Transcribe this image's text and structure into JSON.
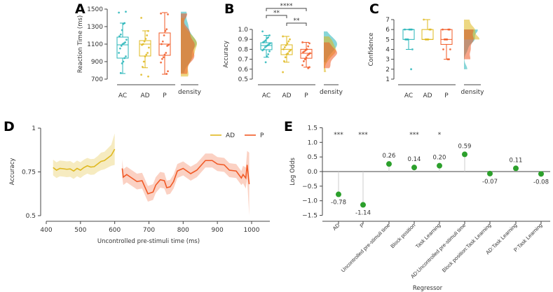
{
  "colors": {
    "AC": "#27b5b8",
    "AD": "#dfb81e",
    "P": "#f15a26",
    "coef": "#2ca02c",
    "stem": "#cccccc",
    "axis": "#444444"
  },
  "chart_data": [
    {
      "panel": "A",
      "type": "box",
      "ylabel": "Reaction Time (ms)",
      "ylim": [
        700,
        1500
      ],
      "yticks": [
        "700",
        "900",
        "1100",
        "1300",
        "1500"
      ],
      "categories": [
        "AC",
        "AD",
        "P"
      ],
      "density_label": "density",
      "series": [
        {
          "name": "AC",
          "q1": 940,
          "median": 1092,
          "q3": 1180,
          "whisker_low": 764,
          "whisker_high": 1340,
          "points": [
            1460,
            1470,
            1340,
            1330,
            1260,
            1210,
            1190,
            1150,
            1120,
            1110,
            1100,
            1080,
            1050,
            1000,
            960,
            940,
            900,
            880,
            770
          ]
        },
        {
          "name": "AD",
          "q1": 964,
          "median": 1100,
          "q3": 1140,
          "whisker_low": 830,
          "whisker_high": 1252,
          "points": [
            1400,
            1250,
            1200,
            1160,
            1130,
            1100,
            1090,
            1060,
            1000,
            980,
            960,
            900,
            840,
            750,
            730
          ]
        },
        {
          "name": "P",
          "q1": 972,
          "median": 1100,
          "q3": 1228,
          "whisker_low": 756,
          "whisker_high": 1460,
          "points": [
            1450,
            1440,
            1270,
            1250,
            1200,
            1130,
            1100,
            1090,
            1080,
            1000,
            980,
            950,
            930,
            890,
            790,
            760
          ]
        }
      ]
    },
    {
      "panel": "B",
      "type": "box",
      "ylabel": "Accuracy",
      "ylim": [
        0.5,
        1.0
      ],
      "yticks": [
        "0.5",
        "0.6",
        "0.7",
        "0.8",
        "0.9",
        "1.0"
      ],
      "categories": [
        "AC",
        "AD",
        "P"
      ],
      "density_label": "density",
      "significance": [
        {
          "from": "AC",
          "to": "P",
          "label": "****"
        },
        {
          "from": "AC",
          "to": "AD",
          "label": "**"
        },
        {
          "from": "AD",
          "to": "P",
          "label": "**"
        }
      ],
      "series": [
        {
          "name": "AC",
          "q1": 0.796,
          "median": 0.838,
          "q3": 0.866,
          "whisker_low": 0.72,
          "whisker_high": 0.94,
          "points": [
            0.98,
            0.94,
            0.92,
            0.91,
            0.89,
            0.88,
            0.87,
            0.86,
            0.85,
            0.84,
            0.83,
            0.82,
            0.8,
            0.79,
            0.78,
            0.75,
            0.73,
            0.67
          ]
        },
        {
          "name": "AD",
          "q1": 0.746,
          "median": 0.8,
          "q3": 0.845,
          "whisker_low": 0.67,
          "whisker_high": 0.93,
          "points": [
            0.93,
            0.9,
            0.88,
            0.86,
            0.84,
            0.82,
            0.8,
            0.79,
            0.78,
            0.76,
            0.75,
            0.72,
            0.68,
            0.57
          ]
        },
        {
          "name": "P",
          "q1": 0.71,
          "median": 0.76,
          "q3": 0.8,
          "whisker_low": 0.62,
          "whisker_high": 0.87,
          "points": [
            0.87,
            0.86,
            0.83,
            0.8,
            0.79,
            0.78,
            0.77,
            0.76,
            0.75,
            0.74,
            0.72,
            0.7,
            0.68,
            0.64,
            0.62,
            0.61
          ]
        }
      ]
    },
    {
      "panel": "C",
      "type": "box",
      "ylabel": "Confidence",
      "ylim": [
        1,
        7
      ],
      "yticks": [
        "1",
        "2",
        "3",
        "4",
        "5",
        "6",
        "7"
      ],
      "categories": [
        "AC",
        "AD",
        "P"
      ],
      "density_label": "density",
      "series": [
        {
          "name": "AC",
          "q1": 5,
          "median": 6,
          "q3": 6,
          "whisker_low": 4,
          "whisker_high": 6,
          "points": [
            6,
            6,
            6,
            6,
            5,
            5,
            5,
            4,
            2
          ]
        },
        {
          "name": "AD",
          "q1": 5,
          "median": 5,
          "q3": 6,
          "whisker_low": 5,
          "whisker_high": 7,
          "points": [
            7,
            6,
            6,
            5,
            5,
            5
          ]
        },
        {
          "name": "P",
          "q1": 4.5,
          "median": 5,
          "q3": 6,
          "whisker_low": 3,
          "whisker_high": 6,
          "points": [
            6,
            6,
            6,
            5,
            5,
            5,
            4,
            4,
            3,
            3
          ]
        }
      ]
    },
    {
      "panel": "D",
      "type": "line",
      "xlabel": "Uncontrolled pre-stimuli time (ms)",
      "ylabel": "Accuracy",
      "xlim": [
        400,
        1050
      ],
      "ylim": [
        0.5,
        1.0
      ],
      "xticks": [
        "400",
        "500",
        "600",
        "700",
        "800",
        "900",
        "1000"
      ],
      "yticks": [
        "0.5",
        "0.75",
        "1"
      ],
      "legend": "top-right",
      "series": [
        {
          "name": "AD",
          "x": [
            420,
            430,
            440,
            450,
            460,
            470,
            480,
            490,
            500,
            510,
            520,
            530,
            540,
            550,
            560,
            570,
            580,
            590,
            600
          ],
          "y": [
            0.775,
            0.76,
            0.77,
            0.768,
            0.765,
            0.767,
            0.755,
            0.77,
            0.76,
            0.775,
            0.785,
            0.778,
            0.78,
            0.795,
            0.81,
            0.815,
            0.83,
            0.845,
            0.88
          ],
          "ci": [
            0.045,
            0.045,
            0.045,
            0.045,
            0.045,
            0.045,
            0.045,
            0.045,
            0.045,
            0.045,
            0.045,
            0.045,
            0.045,
            0.045,
            0.05,
            0.05,
            0.055,
            0.06,
            0.09
          ]
        },
        {
          "name": "P",
          "x": [
            622,
            625,
            635,
            650,
            665,
            680,
            697,
            712,
            720,
            733,
            745,
            752,
            762,
            772,
            783,
            800,
            822,
            840,
            865,
            885,
            900,
            920,
            935,
            955,
            970,
            975,
            983,
            987,
            993
          ],
          "y": [
            0.77,
            0.72,
            0.735,
            0.715,
            0.695,
            0.7,
            0.625,
            0.635,
            0.675,
            0.705,
            0.7,
            0.66,
            0.665,
            0.695,
            0.755,
            0.77,
            0.74,
            0.76,
            0.815,
            0.815,
            0.795,
            0.79,
            0.76,
            0.755,
            0.715,
            0.735,
            0.715,
            0.79,
            0.68
          ],
          "ci": [
            0.05,
            0.045,
            0.045,
            0.045,
            0.045,
            0.045,
            0.045,
            0.045,
            0.045,
            0.045,
            0.045,
            0.04,
            0.04,
            0.04,
            0.04,
            0.04,
            0.04,
            0.04,
            0.04,
            0.04,
            0.04,
            0.04,
            0.04,
            0.04,
            0.04,
            0.05,
            0.06,
            0.08,
            0.18
          ]
        }
      ]
    },
    {
      "panel": "E",
      "type": "lollipop",
      "xlabel": "Regressor",
      "ylabel": "Log Odds",
      "ylim": [
        -1.5,
        1.5
      ],
      "yticks": [
        "−1.5",
        "−1.0",
        "−0.5",
        "0.0",
        "0.5",
        "1.0",
        "1.5"
      ],
      "categories": [
        "AD",
        "P",
        "Uncontrolled pre-stimuli time",
        "Block position",
        "Task Learning",
        "AD:Uncontrolled pre-stimuli time",
        "Block position:Task Learning",
        "AD:Task Learning",
        "P:Task Learning"
      ],
      "values": [
        -0.78,
        -1.14,
        0.26,
        0.14,
        0.2,
        0.59,
        -0.07,
        0.11,
        -0.08
      ],
      "value_labels": [
        "-0.78",
        "-1.14",
        "0.26",
        "0.14",
        "0.20",
        "0.59",
        "-0.07",
        "0.11",
        "-0.08"
      ],
      "significance": [
        "***",
        "***",
        "",
        "***",
        "*",
        "",
        "",
        "",
        ""
      ]
    }
  ]
}
